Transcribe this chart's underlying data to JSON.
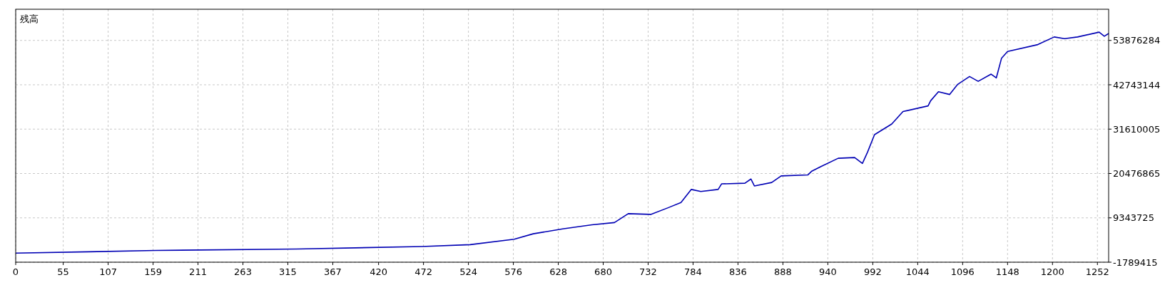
{
  "chart_data": {
    "type": "line",
    "title": "残高",
    "xlim": [
      0,
      1265
    ],
    "ylim": [
      -1789415,
      61700000
    ],
    "xticks": [
      0,
      55,
      107,
      159,
      211,
      263,
      315,
      367,
      420,
      472,
      524,
      576,
      628,
      680,
      732,
      784,
      836,
      888,
      940,
      992,
      1044,
      1096,
      1148,
      1200,
      1252
    ],
    "yticks": [
      -1789415,
      9343725,
      20476865,
      31610005,
      42743144,
      53876284
    ],
    "grid": true,
    "series": [
      {
        "color": "#0000b4",
        "x": [
          0,
          85,
          162,
          325,
          470,
          526,
          577,
          599,
          633,
          667,
          693,
          709,
          735,
          755,
          770,
          782,
          793,
          813,
          817,
          844,
          851,
          855,
          875,
          886,
          917,
          921,
          932,
          952,
          971,
          980,
          986,
          994,
          1014,
          1027,
          1056,
          1059,
          1068,
          1081,
          1090,
          1104,
          1114,
          1129,
          1135,
          1141,
          1148,
          1183,
          1202,
          1214,
          1229,
          1254,
          1260,
          1265
        ],
        "values": [
          500000,
          820000,
          1170000,
          1520000,
          2140000,
          2610000,
          3990000,
          5340000,
          6560000,
          7600000,
          8160000,
          10390000,
          10210000,
          11870000,
          13170000,
          16480000,
          15950000,
          16480000,
          17870000,
          18040000,
          19090000,
          17350000,
          18220000,
          19870000,
          20130000,
          21000000,
          22220000,
          24300000,
          24480000,
          23000000,
          25870000,
          30220000,
          32900000,
          36030000,
          37440000,
          38740000,
          41000000,
          40310000,
          42800000,
          44830000,
          43610000,
          45420000,
          44480000,
          49390000,
          51090000,
          52830000,
          54750000,
          54330000,
          54750000,
          55960000,
          54920000,
          55620000
        ]
      }
    ]
  }
}
